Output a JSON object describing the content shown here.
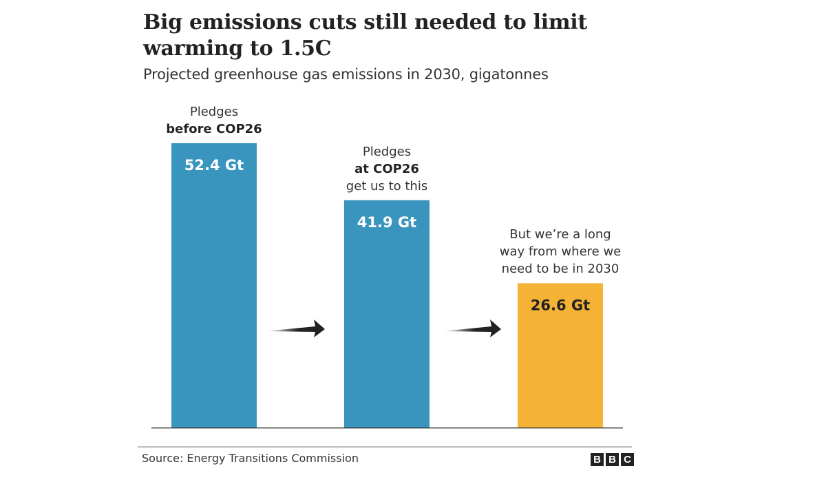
{
  "chart_data": {
    "type": "bar",
    "title": "Big emissions cuts still needed to limit warming to 1.5C",
    "subtitle": "Projected greenhouse gas emissions in 2030, gigatonnes",
    "categories": [
      "Pledges before COP26",
      "Pledges at COP26",
      "Where we need to be in 2030"
    ],
    "values": [
      52.4,
      41.9,
      26.6
    ],
    "unit": "Gt",
    "value_labels": [
      "52.4 Gt",
      "41.9 Gt",
      "26.6 Gt"
    ],
    "colors": [
      "#3a95be",
      "#3a95be",
      "#f5b335"
    ],
    "value_label_colors": [
      "#ffffff",
      "#ffffff",
      "#222222"
    ],
    "annotations": [
      {
        "lines": [
          {
            "text": "Pledges",
            "bold": false
          },
          {
            "text": "before COP26",
            "bold": true
          }
        ]
      },
      {
        "lines": [
          {
            "text": "Pledges",
            "bold": false
          },
          {
            "text": "at COP26",
            "bold": true
          },
          {
            "text": "get us to this",
            "bold": false
          }
        ]
      },
      {
        "lines": [
          {
            "text": "But we’re a long",
            "bold": false
          },
          {
            "text": "way from where we",
            "bold": false
          },
          {
            "text": "need to be in 2030",
            "bold": false
          }
        ]
      }
    ],
    "xlabel": "",
    "ylabel": "",
    "ylim": [
      0,
      52.4
    ],
    "grid": false,
    "legend": "none"
  },
  "footer": {
    "source": "Source: Energy Transitions Commission",
    "logo": [
      "B",
      "B",
      "C"
    ]
  }
}
